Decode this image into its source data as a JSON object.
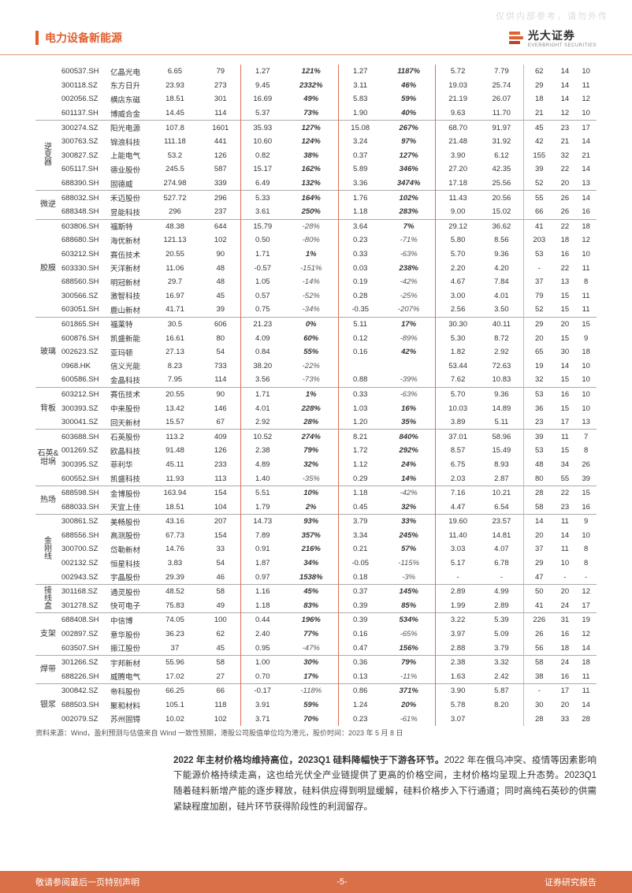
{
  "watermark": "仅供内部参考，请勿外传",
  "header": {
    "title": "电力设备新能源",
    "logo_cn": "光大证券",
    "logo_en": "EVERBRIGHT SECURITIES"
  },
  "groups": [
    {
      "category": "",
      "rows": [
        [
          "600537.SH",
          "亿晶光电",
          "6.65",
          "79",
          "1.27",
          "121%",
          "1.27",
          "1187%",
          "5.72",
          "7.79",
          "62",
          "14",
          "10"
        ],
        [
          "300118.SZ",
          "东方日升",
          "23.93",
          "273",
          "9.45",
          "2332%",
          "3.11",
          "46%",
          "19.03",
          "25.74",
          "29",
          "14",
          "11"
        ],
        [
          "002056.SZ",
          "横店东磁",
          "18.51",
          "301",
          "16.69",
          "49%",
          "5.83",
          "59%",
          "21.19",
          "26.07",
          "18",
          "14",
          "12"
        ],
        [
          "601137.SH",
          "博威合金",
          "14.45",
          "114",
          "5.37",
          "73%",
          "1.90",
          "40%",
          "9.63",
          "11.70",
          "21",
          "12",
          "10"
        ]
      ]
    },
    {
      "category": "逆变器",
      "rows": [
        [
          "300274.SZ",
          "阳光电源",
          "107.8",
          "1601",
          "35.93",
          "127%",
          "15.08",
          "267%",
          "68.70",
          "91.97",
          "45",
          "23",
          "17"
        ],
        [
          "300763.SZ",
          "锦浪科技",
          "111.18",
          "441",
          "10.60",
          "124%",
          "3.24",
          "97%",
          "21.48",
          "31.92",
          "42",
          "21",
          "14"
        ],
        [
          "300827.SZ",
          "上能电气",
          "53.2",
          "126",
          "0.82",
          "38%",
          "0.37",
          "127%",
          "3.90",
          "6.12",
          "155",
          "32",
          "21"
        ],
        [
          "605117.SH",
          "德业股份",
          "245.5",
          "587",
          "15.17",
          "162%",
          "5.89",
          "346%",
          "27.20",
          "42.35",
          "39",
          "22",
          "14"
        ],
        [
          "688390.SH",
          "固德威",
          "274.98",
          "339",
          "6.49",
          "132%",
          "3.36",
          "3474%",
          "17.18",
          "25.56",
          "52",
          "20",
          "13"
        ]
      ]
    },
    {
      "category": "微逆",
      "rows": [
        [
          "688032.SH",
          "禾迈股份",
          "527.72",
          "296",
          "5.33",
          "164%",
          "1.76",
          "102%",
          "11.43",
          "20.56",
          "55",
          "26",
          "14"
        ],
        [
          "688348.SH",
          "昱能科技",
          "296",
          "237",
          "3.61",
          "250%",
          "1.18",
          "283%",
          "9.00",
          "15.02",
          "66",
          "26",
          "16"
        ]
      ]
    },
    {
      "category": "胶膜",
      "rows": [
        [
          "603806.SH",
          "福斯特",
          "48.38",
          "644",
          "15.79",
          "-28%",
          "3.64",
          "7%",
          "29.12",
          "36.62",
          "41",
          "22",
          "18"
        ],
        [
          "688680.SH",
          "海优新材",
          "121.13",
          "102",
          "0.50",
          "-80%",
          "0.23",
          "-71%",
          "5.80",
          "8.56",
          "203",
          "18",
          "12"
        ],
        [
          "603212.SH",
          "赛伍技术",
          "20.55",
          "90",
          "1.71",
          "1%",
          "0.33",
          "-63%",
          "5.70",
          "9.36",
          "53",
          "16",
          "10"
        ],
        [
          "603330.SH",
          "天洋新材",
          "11.06",
          "48",
          "-0.57",
          "-151%",
          "0.03",
          "238%",
          "2.20",
          "4.20",
          "-",
          "22",
          "11"
        ],
        [
          "688560.SH",
          "明冠新材",
          "29.7",
          "48",
          "1.05",
          "-14%",
          "0.19",
          "-42%",
          "4.67",
          "7.84",
          "37",
          "13",
          "8"
        ],
        [
          "300566.SZ",
          "激智科技",
          "16.97",
          "45",
          "0.57",
          "-52%",
          "0.28",
          "-25%",
          "3.00",
          "4.01",
          "79",
          "15",
          "11"
        ],
        [
          "603051.SH",
          "鹿山新材",
          "41.71",
          "39",
          "0.75",
          "-34%",
          "-0.35",
          "-207%",
          "2.56",
          "3.50",
          "52",
          "15",
          "11"
        ]
      ]
    },
    {
      "category": "玻璃",
      "rows": [
        [
          "601865.SH",
          "福莱特",
          "30.5",
          "606",
          "21.23",
          "0%",
          "5.11",
          "17%",
          "30.30",
          "40.11",
          "29",
          "20",
          "15"
        ],
        [
          "600876.SH",
          "凯盛新能",
          "16.61",
          "80",
          "4.09",
          "60%",
          "0.12",
          "-89%",
          "5.30",
          "8.72",
          "20",
          "15",
          "9"
        ],
        [
          "002623.SZ",
          "亚玛顿",
          "27.13",
          "54",
          "0.84",
          "55%",
          "0.16",
          "42%",
          "1.82",
          "2.92",
          "65",
          "30",
          "18"
        ],
        [
          "0968.HK",
          "信义光能",
          "8.23",
          "733",
          "38.20",
          "-22%",
          "",
          "",
          "53.44",
          "72.63",
          "19",
          "14",
          "10"
        ],
        [
          "600586.SH",
          "金晶科技",
          "7.95",
          "114",
          "3.56",
          "-73%",
          "0.88",
          "-39%",
          "7.62",
          "10.83",
          "32",
          "15",
          "10"
        ]
      ]
    },
    {
      "category": "背板",
      "rows": [
        [
          "603212.SH",
          "赛伍技术",
          "20.55",
          "90",
          "1.71",
          "1%",
          "0.33",
          "-63%",
          "5.70",
          "9.36",
          "53",
          "16",
          "10"
        ],
        [
          "300393.SZ",
          "中来股份",
          "13.42",
          "146",
          "4.01",
          "228%",
          "1.03",
          "16%",
          "10.03",
          "14.89",
          "36",
          "15",
          "10"
        ],
        [
          "300041.SZ",
          "回天新材",
          "15.57",
          "67",
          "2.92",
          "28%",
          "1.20",
          "35%",
          "3.89",
          "5.11",
          "23",
          "17",
          "13"
        ]
      ]
    },
    {
      "category": "石英&坩埚",
      "rows": [
        [
          "603688.SH",
          "石英股份",
          "113.2",
          "409",
          "10.52",
          "274%",
          "8.21",
          "840%",
          "37.01",
          "58.96",
          "39",
          "11",
          "7"
        ],
        [
          "001269.SZ",
          "欧晶科技",
          "91.48",
          "126",
          "2.38",
          "79%",
          "1.72",
          "292%",
          "8.57",
          "15.49",
          "53",
          "15",
          "8"
        ],
        [
          "300395.SZ",
          "菲利华",
          "45.11",
          "233",
          "4.89",
          "32%",
          "1.12",
          "24%",
          "6.75",
          "8.93",
          "48",
          "34",
          "26"
        ],
        [
          "600552.SH",
          "凯盛科技",
          "11.93",
          "113",
          "1.40",
          "-35%",
          "0.29",
          "14%",
          "2.03",
          "2.87",
          "80",
          "55",
          "39"
        ]
      ]
    },
    {
      "category": "热场",
      "rows": [
        [
          "688598.SH",
          "金博股份",
          "163.94",
          "154",
          "5.51",
          "10%",
          "1.18",
          "-42%",
          "7.16",
          "10.21",
          "28",
          "22",
          "15"
        ],
        [
          "688033.SH",
          "天宜上佳",
          "18.51",
          "104",
          "1.79",
          "2%",
          "0.45",
          "32%",
          "4.47",
          "6.54",
          "58",
          "23",
          "16"
        ]
      ]
    },
    {
      "category": "金刚线",
      "rows": [
        [
          "300861.SZ",
          "美畅股份",
          "43.16",
          "207",
          "14.73",
          "93%",
          "3.79",
          "33%",
          "19.60",
          "23.57",
          "14",
          "11",
          "9"
        ],
        [
          "688556.SH",
          "高测股份",
          "67.73",
          "154",
          "7.89",
          "357%",
          "3.34",
          "245%",
          "11.40",
          "14.81",
          "20",
          "14",
          "10"
        ],
        [
          "300700.SZ",
          "岱勒新材",
          "14.76",
          "33",
          "0.91",
          "216%",
          "0.21",
          "57%",
          "3.03",
          "4.07",
          "37",
          "11",
          "8"
        ],
        [
          "002132.SZ",
          "恒星科技",
          "3.83",
          "54",
          "1.87",
          "34%",
          "-0.05",
          "-115%",
          "5.17",
          "6.78",
          "29",
          "10",
          "8"
        ],
        [
          "002943.SZ",
          "宇晶股份",
          "29.39",
          "46",
          "0.97",
          "1538%",
          "0.18",
          "-3%",
          "-",
          "-",
          "47",
          "-",
          "-"
        ]
      ]
    },
    {
      "category": "接线盒",
      "rows": [
        [
          "301168.SZ",
          "通灵股份",
          "48.52",
          "58",
          "1.16",
          "45%",
          "0.37",
          "145%",
          "2.89",
          "4.99",
          "50",
          "20",
          "12"
        ],
        [
          "301278.SZ",
          "快可电子",
          "75.83",
          "49",
          "1.18",
          "83%",
          "0.39",
          "85%",
          "1.99",
          "2.89",
          "41",
          "24",
          "17"
        ]
      ]
    },
    {
      "category": "支架",
      "rows": [
        [
          "688408.SH",
          "中信博",
          "74.05",
          "100",
          "0.44",
          "196%",
          "0.39",
          "534%",
          "3.22",
          "5.39",
          "226",
          "31",
          "19"
        ],
        [
          "002897.SZ",
          "意华股份",
          "36.23",
          "62",
          "2.40",
          "77%",
          "0.16",
          "-65%",
          "3.97",
          "5.09",
          "26",
          "16",
          "12"
        ],
        [
          "603507.SH",
          "振江股份",
          "37",
          "45",
          "0.95",
          "-47%",
          "0.47",
          "156%",
          "2.88",
          "3.79",
          "56",
          "18",
          "14"
        ]
      ]
    },
    {
      "category": "焊带",
      "rows": [
        [
          "301266.SZ",
          "宇邦新材",
          "55.96",
          "58",
          "1.00",
          "30%",
          "0.36",
          "79%",
          "2.38",
          "3.32",
          "58",
          "24",
          "18"
        ],
        [
          "688226.SH",
          "威腾电气",
          "17.02",
          "27",
          "0.70",
          "17%",
          "0.13",
          "-11%",
          "1.63",
          "2.42",
          "38",
          "16",
          "11"
        ]
      ]
    },
    {
      "category": "银浆",
      "rows": [
        [
          "300842.SZ",
          "帝科股份",
          "66.25",
          "66",
          "-0.17",
          "-118%",
          "0.86",
          "371%",
          "3.90",
          "5.87",
          "-",
          "17",
          "11"
        ],
        [
          "688503.SH",
          "聚和材料",
          "105.1",
          "118",
          "3.91",
          "59%",
          "1.24",
          "20%",
          "5.78",
          "8.20",
          "30",
          "20",
          "14"
        ],
        [
          "002079.SZ",
          "苏州固锝",
          "10.02",
          "102",
          "3.71",
          "70%",
          "0.23",
          "-61%",
          "3.07",
          "",
          "28",
          "33",
          "28"
        ]
      ]
    }
  ],
  "source_note": "资料来源：Wind，盈利预测与估值来自 Wind 一致性预期，港股公司股值单位均为港元，股价时间：2023 年 5 月 8 日",
  "body": {
    "lead": "2022 年主材价格均维持高位，2023Q1 硅料降幅快于下游各环节。",
    "rest": "2022 年在俄乌冲突、疫情等因素影响下能源价格持续走高，这也给光伏全产业链提供了更高的价格空间，主材价格均呈现上升态势。2023Q1 随着硅料新增产能的逐步释放，硅料供应得到明显缓解，硅料价格步入下行通道；同时高纯石英砂的供需紧缺程度加剧，硅片环节获得阶段性的利润留存。"
  },
  "footer": {
    "left": "敬请参阅最后一页特别声明",
    "page": "-5-",
    "right": "证券研究报告"
  }
}
